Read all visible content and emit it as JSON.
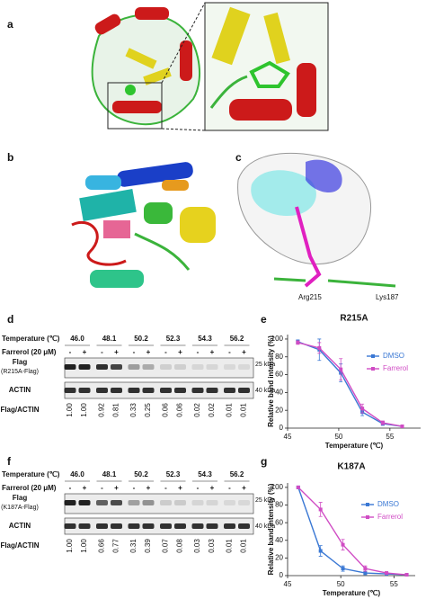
{
  "panel_labels": [
    "a",
    "b",
    "c",
    "d",
    "e",
    "f",
    "g"
  ],
  "structure_labels": [
    "Arg215",
    "Lys187"
  ],
  "blots": [
    {
      "temperature_label": "Temperature (℃)",
      "temperatures": [
        "46.0",
        "48.1",
        "50.2",
        "52.3",
        "54.3",
        "56.2"
      ],
      "treatment_label": "Farrerol (20 μM)",
      "treatment_signs": [
        "-",
        "+"
      ],
      "flag_label": "Flag",
      "flag_sublabel": "(R215A-Flag)",
      "actin_label": "ACTIN",
      "marker_flag": "25 kDa",
      "marker_actin": "40 kDa",
      "ratio_label": "Flag/ACTIN",
      "ratios": [
        "1.00",
        "1.00",
        "0.92",
        "0.81",
        "0.33",
        "0.25",
        "0.06",
        "0.06",
        "0.02",
        "0.02",
        "0.01",
        "0.01"
      ]
    },
    {
      "temperature_label": "Temperature (℃)",
      "temperatures": [
        "46.0",
        "48.1",
        "50.2",
        "52.3",
        "54.3",
        "56.2"
      ],
      "treatment_label": "Farrerol (20 μM)",
      "treatment_signs": [
        "-",
        "+"
      ],
      "flag_label": "Flag",
      "flag_sublabel": "(K187A-Flag)",
      "actin_label": "ACTIN",
      "marker_flag": "25 kDa",
      "marker_actin": "40 kDa",
      "ratio_label": "Flag/ACTIN",
      "ratios": [
        "1.00",
        "1.00",
        "0.66",
        "0.77",
        "0.31",
        "0.39",
        "0.07",
        "0.08",
        "0.03",
        "0.03",
        "0.01",
        "0.01"
      ]
    }
  ],
  "chart_data": [
    {
      "type": "line",
      "title": "R215A",
      "x_label": "Temperature (℃)",
      "y_label": "Relative band intensity (%)",
      "x": [
        46.0,
        48.1,
        50.2,
        52.3,
        54.3,
        56.2
      ],
      "series": [
        {
          "name": "DMSO",
          "color": "#3a78d4",
          "values": [
            97,
            88,
            62,
            18,
            5,
            2
          ],
          "errors": [
            2,
            12,
            10,
            4,
            2,
            1
          ]
        },
        {
          "name": "Farrerol",
          "color": "#d04cc4",
          "values": [
            96,
            90,
            66,
            22,
            6,
            2
          ],
          "errors": [
            2,
            6,
            12,
            5,
            2,
            1
          ]
        }
      ],
      "xlim": [
        45,
        58
      ],
      "ylim": [
        0,
        105
      ],
      "xticks": [
        45,
        50,
        55
      ],
      "yticks": [
        0,
        20,
        40,
        60,
        80,
        100
      ],
      "legend": "upper right"
    },
    {
      "type": "line",
      "title": "K187A",
      "x_label": "Temperature (℃)",
      "y_label": "Relative band intensity (%)",
      "x": [
        46.0,
        48.1,
        50.2,
        52.3,
        54.3,
        56.2
      ],
      "series": [
        {
          "name": "DMSO",
          "color": "#3a78d4",
          "values": [
            100,
            28,
            8,
            3,
            2,
            1
          ],
          "errors": [
            1,
            6,
            3,
            2,
            1,
            1
          ]
        },
        {
          "name": "Farrerol",
          "color": "#d04cc4",
          "values": [
            100,
            75,
            35,
            8,
            3,
            1
          ],
          "errors": [
            1,
            8,
            6,
            3,
            1,
            1
          ]
        }
      ],
      "xlim": [
        45,
        57
      ],
      "ylim": [
        0,
        105
      ],
      "xticks": [
        45,
        50,
        55
      ],
      "yticks": [
        0,
        20,
        40,
        60,
        80,
        100
      ],
      "legend": "upper right"
    }
  ]
}
